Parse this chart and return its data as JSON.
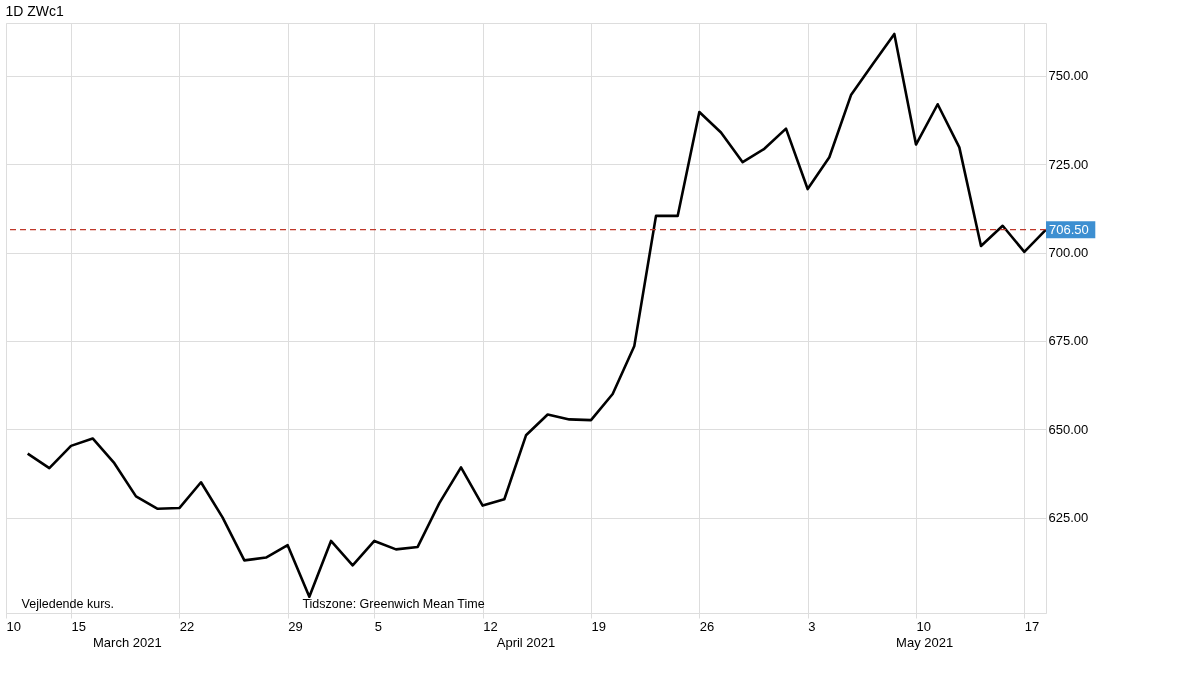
{
  "chart_data": {
    "type": "line",
    "title": "1D   ZWc1",
    "categories": [
      "10",
      null,
      null,
      "15",
      null,
      null,
      null,
      null,
      "22",
      null,
      null,
      null,
      null,
      "29",
      null,
      null,
      null,
      "5",
      null,
      null,
      null,
      null,
      "12",
      null,
      null,
      null,
      null,
      "19",
      null,
      null,
      null,
      null,
      "26",
      null,
      null,
      null,
      null,
      "3",
      null,
      null,
      null,
      null,
      "10",
      null,
      null,
      null,
      null,
      "17",
      null
    ],
    "series": [
      {
        "color": "#000000",
        "values": [
          null,
          643.1,
          639.0,
          645.3,
          647.4,
          640.4,
          631.0,
          627.5,
          627.7,
          635.0,
          625.0,
          612.9,
          613.7,
          617.2,
          602.6,
          618.4,
          611.5,
          618.4,
          616.0,
          616.7,
          629.1,
          639.2,
          628.4,
          630.2,
          648.3,
          654.2,
          652.8,
          652.6,
          660.0,
          673.6,
          710.4,
          710.4,
          739.8,
          734.0,
          725.6,
          729.4,
          735.1,
          718.0,
          727.0,
          744.6,
          753.3,
          761.9,
          730.6,
          742.0,
          729.8,
          701.9,
          707.6,
          700.2,
          706.5
        ]
      }
    ],
    "ylim": [
      598,
      765
    ],
    "yticks": [
      {
        "value": 625,
        "label": "625.00"
      },
      {
        "value": 650,
        "label": "650.00"
      },
      {
        "value": 675,
        "label": "675.00"
      },
      {
        "value": 700,
        "label": "700.00"
      },
      {
        "value": 725,
        "label": "725.00"
      },
      {
        "value": 750,
        "label": "750.00"
      }
    ],
    "grid": true,
    "marker": "none",
    "line_style": "solid",
    "ref_lines": [
      {
        "axis": "y",
        "value": 706.5,
        "label": "706.50",
        "color": "#c0392b",
        "line_style": "dashed"
      }
    ],
    "annotations": [
      "Vejledende kurs.",
      "Tidszone: Greenwich Mean Time",
      "March 2021",
      "April 2021",
      "May 2021"
    ]
  }
}
